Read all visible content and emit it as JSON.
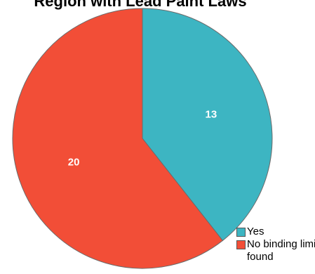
{
  "chart_data": {
    "type": "pie",
    "title": "Region with Lead Paint Laws",
    "categories": [
      "Yes",
      "No binding limit found"
    ],
    "values": [
      13,
      20
    ],
    "colors": [
      "#3db5c2",
      "#f24e37"
    ],
    "data_labels": [
      "13",
      "20"
    ],
    "legend_placement": "bottom-right"
  }
}
